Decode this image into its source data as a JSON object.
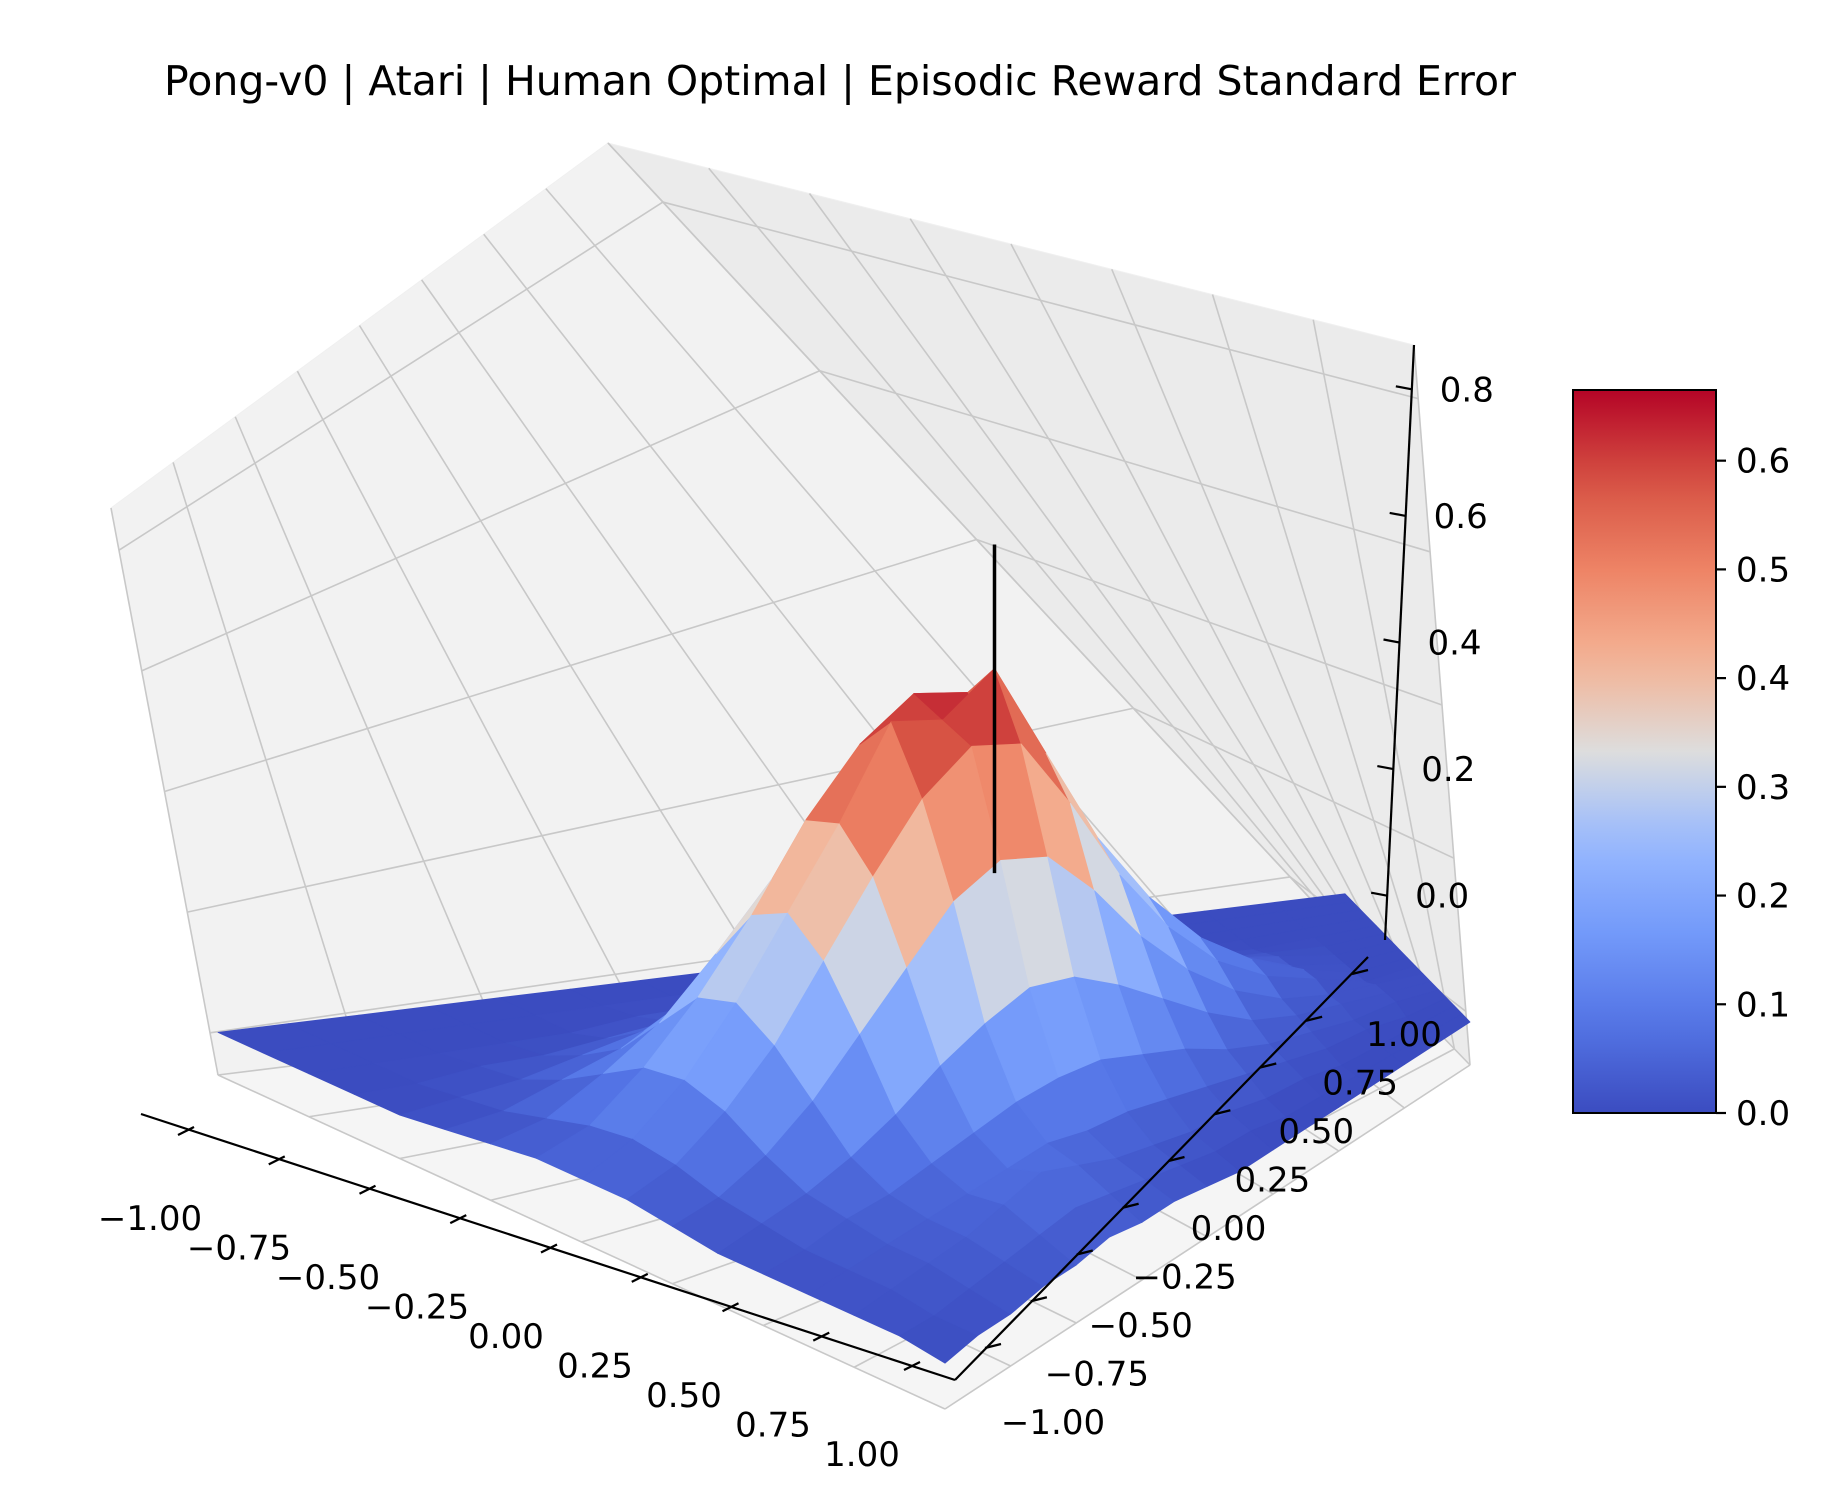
{
  "chart_data": {
    "type": "surface3d",
    "title": "Pong-v0 | Atari | Human Optimal | Episodic Reward Standard Error",
    "x": [
      -1.0,
      -0.875,
      -0.75,
      -0.625,
      -0.5,
      -0.375,
      -0.25,
      -0.125,
      0.0,
      0.125,
      0.25,
      0.375,
      0.5,
      0.625,
      0.75,
      0.875,
      1.0
    ],
    "y": [
      -1.0,
      -0.875,
      -0.75,
      -0.625,
      -0.5,
      -0.375,
      -0.25,
      -0.125,
      0.0,
      0.125,
      0.25,
      0.375,
      0.5,
      0.625,
      0.75,
      0.875,
      1.0
    ],
    "z": [
      [
        0.0,
        0.0,
        0.0,
        0.0,
        0.0,
        0.0,
        0.0,
        0.0,
        0.0,
        0.0,
        0.0,
        0.0,
        0.0,
        0.0,
        0.0,
        0.0,
        0.0
      ],
      [
        0.0,
        0.0,
        0.0,
        0.0,
        0.0,
        0.0,
        0.0,
        0.0,
        0.0,
        0.0,
        0.01,
        0.01,
        0.01,
        0.0,
        0.0,
        0.0,
        0.0
      ],
      [
        0.0,
        0.0,
        0.0,
        0.0,
        0.0,
        0.01,
        0.02,
        0.02,
        0.03,
        0.03,
        0.02,
        0.02,
        0.01,
        0.01,
        0.0,
        0.0,
        0.0
      ],
      [
        0.0,
        0.0,
        0.0,
        0.0,
        0.01,
        0.02,
        0.04,
        0.06,
        0.07,
        0.06,
        0.04,
        0.03,
        0.02,
        0.01,
        0.0,
        0.0,
        0.0
      ],
      [
        0.0,
        0.0,
        0.0,
        0.01,
        0.03,
        0.05,
        0.08,
        0.12,
        0.13,
        0.11,
        0.08,
        0.05,
        0.03,
        0.02,
        0.01,
        0.0,
        0.0
      ],
      [
        0.0,
        0.0,
        0.0,
        0.02,
        0.05,
        0.1,
        0.16,
        0.2,
        0.22,
        0.19,
        0.14,
        0.09,
        0.05,
        0.03,
        0.01,
        0.0,
        0.0
      ],
      [
        0.0,
        0.0,
        0.01,
        0.03,
        0.08,
        0.16,
        0.26,
        0.32,
        0.34,
        0.3,
        0.22,
        0.14,
        0.08,
        0.04,
        0.02,
        0.01,
        0.0
      ],
      [
        0.0,
        0.0,
        0.01,
        0.04,
        0.11,
        0.24,
        0.38,
        0.46,
        0.5,
        0.44,
        0.32,
        0.19,
        0.1,
        0.05,
        0.02,
        0.01,
        0.0
      ],
      [
        0.0,
        0.0,
        0.01,
        0.05,
        0.14,
        0.3,
        0.46,
        0.6,
        0.66,
        0.56,
        0.4,
        0.23,
        0.12,
        0.06,
        0.03,
        0.02,
        0.01
      ],
      [
        0.0,
        0.0,
        0.01,
        0.05,
        0.14,
        0.31,
        0.5,
        0.62,
        0.6,
        0.58,
        0.42,
        0.24,
        0.12,
        0.06,
        0.04,
        0.03,
        0.02
      ],
      [
        0.0,
        0.0,
        0.01,
        0.04,
        0.12,
        0.27,
        0.44,
        0.56,
        0.62,
        0.52,
        0.38,
        0.21,
        0.11,
        0.07,
        0.06,
        0.04,
        0.02
      ],
      [
        0.0,
        0.0,
        0.01,
        0.03,
        0.09,
        0.2,
        0.34,
        0.46,
        0.48,
        0.42,
        0.3,
        0.17,
        0.09,
        0.06,
        0.08,
        0.05,
        0.03
      ],
      [
        0.0,
        0.0,
        0.0,
        0.02,
        0.06,
        0.13,
        0.24,
        0.33,
        0.36,
        0.31,
        0.22,
        0.12,
        0.07,
        0.05,
        0.06,
        0.04,
        0.02
      ],
      [
        0.0,
        0.0,
        0.0,
        0.01,
        0.04,
        0.08,
        0.15,
        0.22,
        0.24,
        0.2,
        0.14,
        0.08,
        0.05,
        0.04,
        0.04,
        0.03,
        0.02
      ],
      [
        0.0,
        0.0,
        0.0,
        0.01,
        0.02,
        0.05,
        0.09,
        0.13,
        0.14,
        0.12,
        0.08,
        0.05,
        0.04,
        0.03,
        0.03,
        0.02,
        0.01
      ],
      [
        0.0,
        0.0,
        0.0,
        0.0,
        0.01,
        0.02,
        0.04,
        0.06,
        0.07,
        0.06,
        0.04,
        0.03,
        0.02,
        0.02,
        0.02,
        0.01,
        0.01
      ],
      [
        0.0,
        0.0,
        0.0,
        0.0,
        0.0,
        0.01,
        0.02,
        0.03,
        0.03,
        0.03,
        0.02,
        0.01,
        0.01,
        0.01,
        0.01,
        0.01,
        0.0
      ]
    ],
    "marker_line": {
      "x": 0.0,
      "y": 0.0,
      "z_range": [
        0.33,
        0.86
      ]
    },
    "xlim": [
      -1.0,
      1.0
    ],
    "ylim": [
      -1.0,
      1.0
    ],
    "zlim": [
      -0.07,
      0.87
    ],
    "x_ticks": [
      "−1.00",
      "−0.75",
      "−0.50",
      "−0.25",
      "0.00",
      "0.25",
      "0.50",
      "0.75",
      "1.00"
    ],
    "y_ticks": [
      "−1.00",
      "−0.75",
      "−0.50",
      "−0.25",
      "0.00",
      "0.25",
      "0.50",
      "0.75",
      "1.00"
    ],
    "z_ticks": [
      "0.0",
      "0.2",
      "0.4",
      "0.6",
      "0.8"
    ],
    "colorbar": {
      "colormap": "coolwarm",
      "range": [
        0.0,
        0.665
      ],
      "ticks": [
        "0.0",
        "0.1",
        "0.2",
        "0.3",
        "0.4",
        "0.5",
        "0.6"
      ]
    },
    "grid": true,
    "xlabel": "",
    "ylabel": "",
    "zlabel": ""
  }
}
